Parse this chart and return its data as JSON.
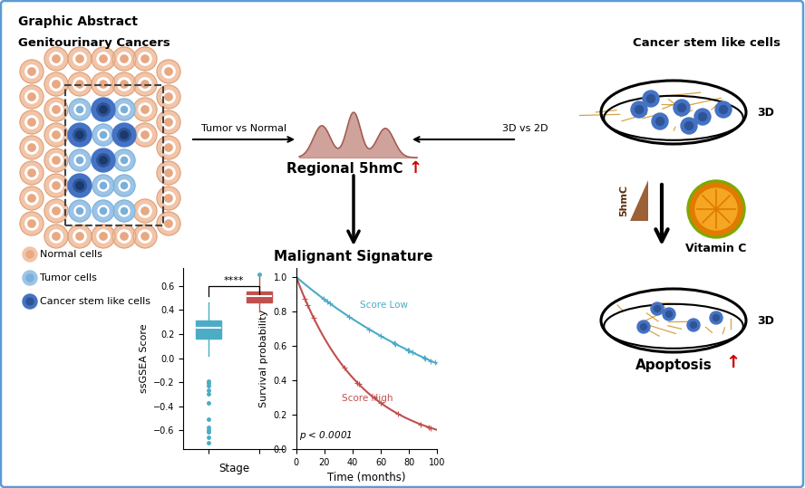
{
  "title": "Graphic Abstract",
  "border_color": "#5b9bd5",
  "section_titles": {
    "genitourinary": "Genitourinary Cancers",
    "cancer_stem": "Cancer stem like cells",
    "malignant": "Malignant Signature",
    "apoptosis": "Apoptosis"
  },
  "legend_labels": [
    "Normal cells",
    "Tumor cells",
    "Cancer stem like cells"
  ],
  "arrow_labels": {
    "left": "Tumor vs Normal",
    "right": "3D vs 2D"
  },
  "box_colors": {
    "low_stage": "#4bacc6",
    "high_stage": "#c0504d"
  },
  "km_colors": {
    "low": "#4bacc6",
    "high": "#c0504d"
  },
  "normal_cell_color": "#f2c4a8",
  "normal_cell_border": "#d4956a",
  "normal_cell_nucleus": "#e8a882",
  "tumor_cell_color": "#9dc3e6",
  "tumor_cell_border": "#6baed6",
  "tumor_cell_nucleus": "#7ab0d8",
  "stem_cell_color": "#4472c4",
  "stem_cell_inner": "#2f5496",
  "stem_cell_nucleus": "#1a3a6b",
  "density_color": "#c0857a",
  "density_line": "#a0574e",
  "fiber_color": "#c8860a",
  "vitc_outer": "#e07b00",
  "vitc_inner": "#f5a623",
  "vitc_green": "#6a8c00"
}
